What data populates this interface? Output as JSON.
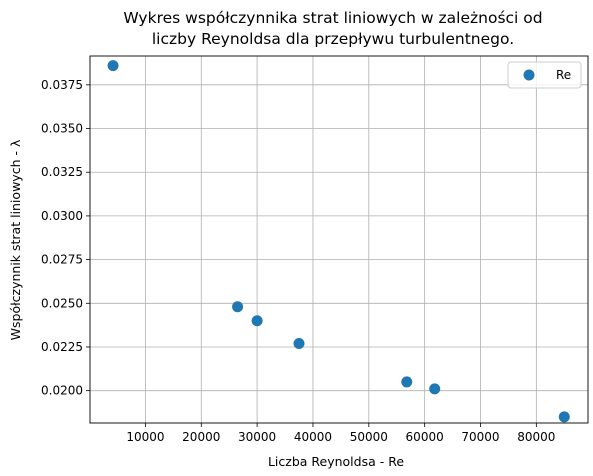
{
  "chart_data": {
    "type": "scatter",
    "title_line1": "Wykres współczynnika strat liniowych w zależności od",
    "title_line2": "liczby Reynoldsa dla przepływu turbulentnego.",
    "xlabel": "Liczba Reynoldsa - Re",
    "ylabel": "Współczynnik strat liniowych - λ",
    "xlim": [
      75,
      89250
    ],
    "ylim": [
      0.01815,
      0.03915
    ],
    "xticks": [
      10000,
      20000,
      30000,
      40000,
      50000,
      60000,
      70000,
      80000
    ],
    "yticks": [
      0.02,
      0.0225,
      0.025,
      0.0275,
      0.03,
      0.0325,
      0.035,
      0.0375
    ],
    "xtick_labels": [
      "10000",
      "20000",
      "30000",
      "40000",
      "50000",
      "60000",
      "70000",
      "80000"
    ],
    "ytick_labels": [
      "0.0200",
      "0.0225",
      "0.0250",
      "0.0275",
      "0.0300",
      "0.0325",
      "0.0350",
      "0.0375"
    ],
    "grid": true,
    "legend_position": "top-right",
    "series": [
      {
        "name": "Re",
        "color": "#1f77b4",
        "points": [
          {
            "x": 4200,
            "y": 0.0386
          },
          {
            "x": 26500,
            "y": 0.0248
          },
          {
            "x": 30000,
            "y": 0.024
          },
          {
            "x": 37500,
            "y": 0.0227
          },
          {
            "x": 56800,
            "y": 0.0205
          },
          {
            "x": 61800,
            "y": 0.0201
          },
          {
            "x": 85000,
            "y": 0.0185
          }
        ]
      }
    ]
  }
}
